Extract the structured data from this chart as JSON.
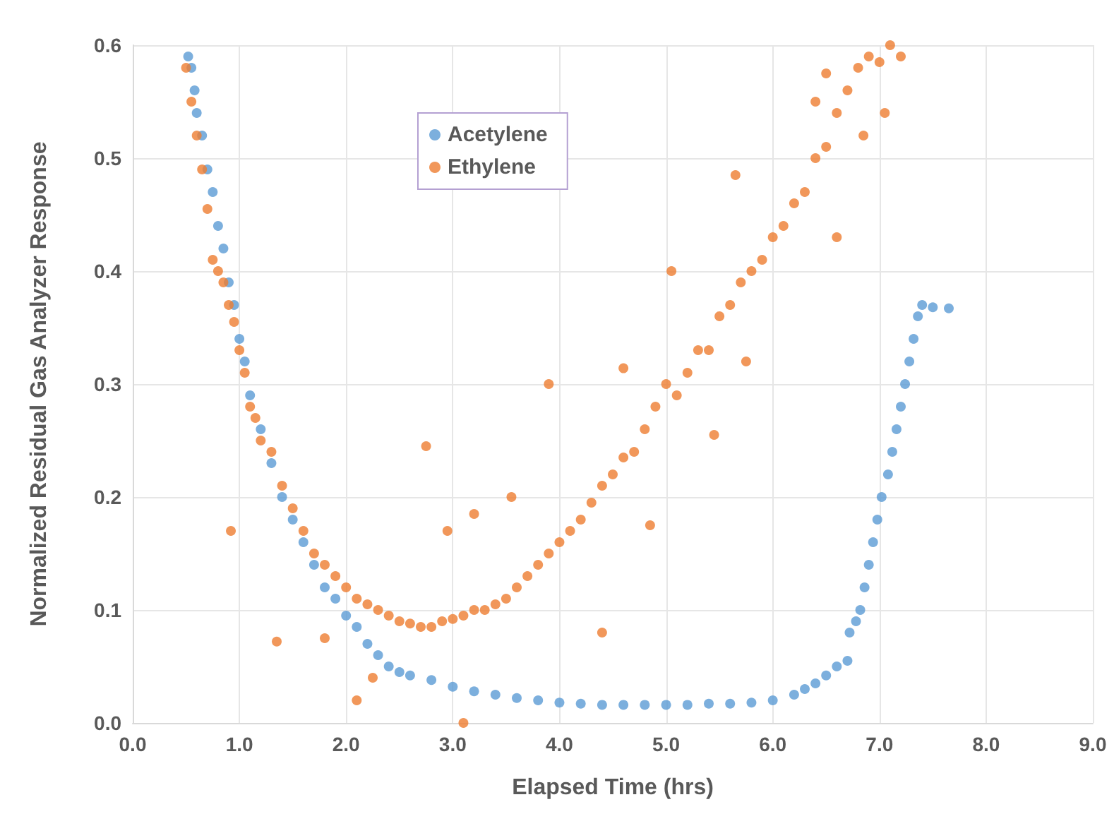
{
  "chart_data": {
    "type": "scatter",
    "xlabel": "Elapsed Time (hrs)",
    "ylabel": "Normalized Residual Gas Analyzer Response",
    "xlim": [
      0,
      9
    ],
    "xticks": [
      {
        "value": 0,
        "label": "0.0"
      },
      {
        "value": 1,
        "label": "1.0"
      },
      {
        "value": 2,
        "label": "2.0"
      },
      {
        "value": 3,
        "label": "3.0"
      },
      {
        "value": 4,
        "label": "4.0"
      },
      {
        "value": 5,
        "label": "5.0"
      },
      {
        "value": 6,
        "label": "6.0"
      },
      {
        "value": 7,
        "label": "7.0"
      },
      {
        "value": 8,
        "label": "8.0"
      },
      {
        "value": 9,
        "label": "9.0"
      }
    ],
    "ylim": [
      0,
      0.6
    ],
    "yticks": [
      {
        "value": 0,
        "label": "0.0"
      },
      0.1,
      0.2,
      0.3,
      0.4,
      0.5,
      0.6
    ],
    "grid": true,
    "legend": "top left",
    "marker": "circle",
    "series": [
      {
        "name": "Acetylene",
        "color": "#5b9bd5",
        "x": [
          0.52,
          0.55,
          0.58,
          0.6,
          0.65,
          0.7,
          0.75,
          0.8,
          0.85,
          0.9,
          0.95,
          1.0,
          1.05,
          1.1,
          1.2,
          1.3,
          1.4,
          1.5,
          1.6,
          1.7,
          1.8,
          1.9,
          2.0,
          2.1,
          2.2,
          2.3,
          2.4,
          2.5,
          2.6,
          2.8,
          3.0,
          3.2,
          3.4,
          3.6,
          3.8,
          4.0,
          4.2,
          4.4,
          4.6,
          4.8,
          5.0,
          5.2,
          5.4,
          5.6,
          5.8,
          6.0,
          6.2,
          6.3,
          6.4,
          6.5,
          6.6,
          6.7,
          6.72,
          6.78,
          6.82,
          6.86,
          6.9,
          6.94,
          6.98,
          7.02,
          7.08,
          7.12,
          7.16,
          7.2,
          7.24,
          7.28,
          7.32,
          7.36,
          7.4,
          7.5,
          7.65
        ],
        "values": [
          0.59,
          0.58,
          0.56,
          0.54,
          0.52,
          0.49,
          0.47,
          0.44,
          0.42,
          0.39,
          0.37,
          0.34,
          0.32,
          0.29,
          0.26,
          0.23,
          0.2,
          0.18,
          0.16,
          0.14,
          0.12,
          0.11,
          0.095,
          0.085,
          0.07,
          0.06,
          0.05,
          0.045,
          0.042,
          0.038,
          0.032,
          0.028,
          0.025,
          0.022,
          0.02,
          0.018,
          0.017,
          0.016,
          0.016,
          0.016,
          0.016,
          0.016,
          0.017,
          0.017,
          0.018,
          0.02,
          0.025,
          0.03,
          0.035,
          0.042,
          0.05,
          0.055,
          0.08,
          0.09,
          0.1,
          0.12,
          0.14,
          0.16,
          0.18,
          0.2,
          0.22,
          0.24,
          0.26,
          0.28,
          0.3,
          0.32,
          0.34,
          0.36,
          0.37,
          0.368,
          0.367
        ]
      },
      {
        "name": "Ethylene",
        "color": "#ed7d31",
        "x": [
          0.5,
          0.55,
          0.6,
          0.65,
          0.7,
          0.75,
          0.8,
          0.85,
          0.9,
          0.95,
          1.0,
          1.05,
          1.1,
          1.15,
          1.2,
          1.3,
          1.4,
          1.5,
          1.6,
          1.7,
          1.8,
          1.9,
          2.0,
          2.1,
          2.2,
          2.3,
          2.4,
          2.5,
          2.6,
          2.7,
          2.8,
          2.9,
          3.0,
          3.1,
          3.2,
          3.3,
          3.4,
          3.5,
          3.6,
          3.7,
          3.8,
          3.9,
          4.0,
          4.1,
          4.2,
          4.3,
          4.4,
          4.5,
          4.6,
          4.7,
          4.8,
          4.9,
          5.0,
          5.1,
          5.2,
          5.3,
          5.4,
          5.5,
          5.6,
          5.7,
          5.8,
          5.9,
          6.0,
          6.1,
          6.2,
          6.3,
          6.4,
          6.5,
          6.6,
          6.7,
          6.8,
          6.9,
          7.0,
          7.1,
          7.2,
          6.6,
          6.85,
          7.05,
          6.4,
          6.5,
          0.92,
          1.35,
          1.8,
          2.1,
          2.25,
          3.1,
          2.75,
          2.95,
          3.2,
          3.55,
          3.9,
          4.4,
          4.6,
          4.85,
          5.05,
          5.65,
          5.45,
          5.75
        ],
        "values": [
          0.58,
          0.55,
          0.52,
          0.49,
          0.455,
          0.41,
          0.4,
          0.39,
          0.37,
          0.355,
          0.33,
          0.31,
          0.28,
          0.27,
          0.25,
          0.24,
          0.21,
          0.19,
          0.17,
          0.15,
          0.14,
          0.13,
          0.12,
          0.11,
          0.105,
          0.1,
          0.095,
          0.09,
          0.088,
          0.085,
          0.085,
          0.09,
          0.092,
          0.095,
          0.1,
          0.1,
          0.105,
          0.11,
          0.12,
          0.13,
          0.14,
          0.15,
          0.16,
          0.17,
          0.18,
          0.195,
          0.21,
          0.22,
          0.235,
          0.24,
          0.26,
          0.28,
          0.3,
          0.29,
          0.31,
          0.33,
          0.33,
          0.36,
          0.37,
          0.39,
          0.4,
          0.41,
          0.43,
          0.44,
          0.46,
          0.47,
          0.5,
          0.51,
          0.54,
          0.56,
          0.58,
          0.59,
          0.585,
          0.6,
          0.59,
          0.43,
          0.52,
          0.54,
          0.55,
          0.575,
          0.17,
          0.072,
          0.075,
          0.02,
          0.04,
          0.0,
          0.245,
          0.17,
          0.185,
          0.2,
          0.3,
          0.08,
          0.314,
          0.175,
          0.4,
          0.485,
          0.255,
          0.32
        ]
      }
    ]
  }
}
